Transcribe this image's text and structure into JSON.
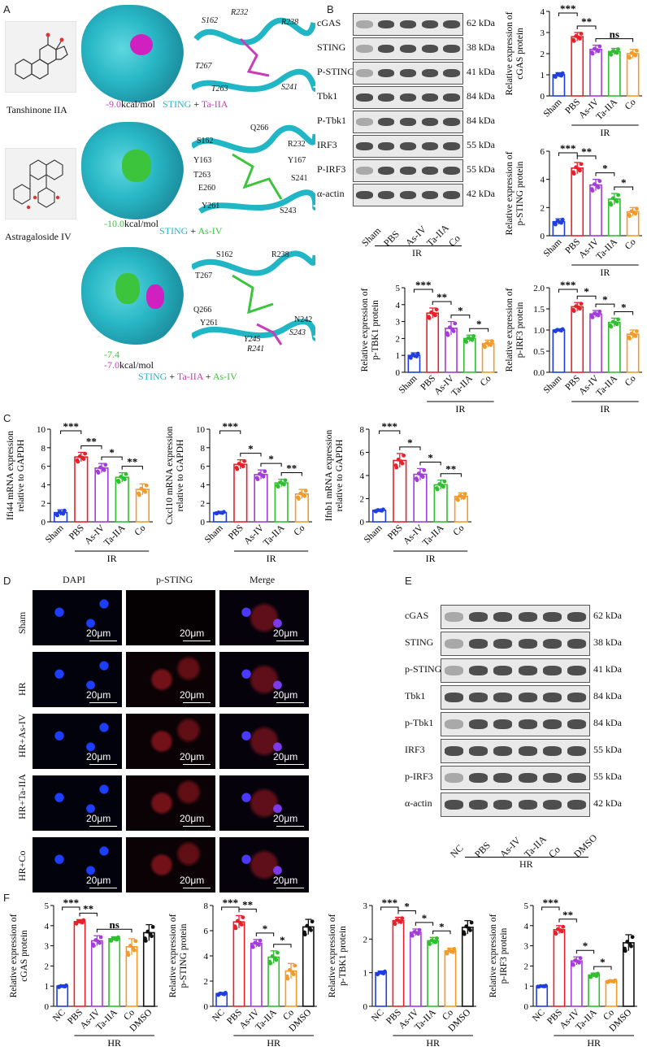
{
  "panel_labels": {
    "A": "A",
    "B": "B",
    "C": "C",
    "D": "D",
    "E": "E",
    "F": "F"
  },
  "docking": {
    "compound1": "Tanshinone IIA",
    "compound2": "Astragaloside IV",
    "energy1": "-9.0",
    "energy2": "-10.0",
    "energy3a": "-7.4",
    "energy3b": "-7.0",
    "unit": "kcal/mol",
    "cap1": {
      "a": "STING",
      "plus": " + ",
      "b": "Ta-IIA"
    },
    "cap2": {
      "a": "STING",
      "plus": " + ",
      "b": "As-IV"
    },
    "cap3": {
      "a": "STING",
      "p1": " + ",
      "b": "Ta-IIA",
      "p2": " + ",
      "c": "As-IV"
    },
    "residues1": [
      "S162",
      "R232",
      "R238",
      "T267",
      "T263",
      "S241"
    ],
    "residues2": [
      "S162",
      "Q266",
      "R232",
      "Y163",
      "Y167",
      "T263",
      "S241",
      "E260",
      "Y261",
      "S243"
    ],
    "residues3": [
      "S162",
      "R238",
      "T267",
      "Q266",
      "Y261",
      "N242",
      "S243",
      "Y245",
      "R241"
    ],
    "colors": {
      "sting": "#21b6c5",
      "ta": "#c63fb4",
      "as": "#3cc43c"
    }
  },
  "blotB": {
    "labels": [
      "cGAS",
      "STING",
      "P-STING",
      "Tbk1",
      "P-Tbk1",
      "IRF3",
      "P-IRF3",
      "α-actin"
    ],
    "mw": [
      "62 kDa",
      "38 kDa",
      "41 kDa",
      "84 kDa",
      "84 kDa",
      "55 kDa",
      "55 kDa",
      "42 kDa"
    ],
    "lanes": [
      "Sham",
      "PBS",
      "As-IV",
      "Ta-IIA",
      "Co"
    ],
    "group": "IR"
  },
  "blotE": {
    "labels": [
      "cGAS",
      "STING",
      "p-STING",
      "Tbk1",
      "p-Tbk1",
      "IRF3",
      "p-IRF3",
      "α-actin"
    ],
    "mw": [
      "62 kDa",
      "38 kDa",
      "41 kDa",
      "84 kDa",
      "84 kDa",
      "55 kDa",
      "55 kDa",
      "42 kDa"
    ],
    "lanes": [
      "NC",
      "PBS",
      "As-IV",
      "Ta-IIA",
      "Co",
      "DMSO"
    ],
    "group": "HR"
  },
  "microscopy": {
    "columns": [
      "DAPI",
      "p-STING",
      "Merge"
    ],
    "rows": [
      "Sham",
      "HR",
      "HR+As-IV",
      "HR+Ta-IIA",
      "HR+Co"
    ],
    "scale": "20μm"
  },
  "colors": {
    "blue": "#1f3ee0",
    "red": "#e8202a",
    "purple": "#a43cdc",
    "green": "#2fbf2f",
    "orange": "#f39a2a",
    "black": "#111111"
  },
  "chart_data": [
    {
      "id": "b_cgas",
      "type": "bar",
      "ylabel": "Relative expression of\ncGAS protein",
      "categories": [
        "Sham",
        "PBS",
        "As-IV",
        "Ta-IIA",
        "Co"
      ],
      "values": [
        1.0,
        2.8,
        2.2,
        2.1,
        2.0
      ],
      "errors": [
        0.1,
        0.2,
        0.2,
        0.15,
        0.2
      ],
      "ylim": [
        0,
        4
      ],
      "yticks": [
        0,
        1,
        2,
        3,
        4
      ],
      "group_label": "IR",
      "sig": [
        {
          "from": 0,
          "to": 1,
          "label": "***"
        },
        {
          "from": 1,
          "to": 2,
          "label": "**"
        },
        {
          "from": 2,
          "to": 4,
          "label": "ns"
        }
      ]
    },
    {
      "id": "b_psting",
      "type": "bar",
      "ylabel": "Relative expression of\np-STING protein",
      "categories": [
        "Sham",
        "PBS",
        "As-IV",
        "Ta-IIA",
        "Co"
      ],
      "values": [
        1.0,
        4.8,
        3.6,
        2.6,
        1.7
      ],
      "errors": [
        0.2,
        0.4,
        0.4,
        0.4,
        0.3
      ],
      "ylim": [
        0,
        6
      ],
      "yticks": [
        0,
        2,
        4,
        6
      ],
      "group_label": "IR",
      "sig": [
        {
          "from": 0,
          "to": 1,
          "label": "***"
        },
        {
          "from": 1,
          "to": 2,
          "label": "**"
        },
        {
          "from": 2,
          "to": 3,
          "label": "*"
        },
        {
          "from": 3,
          "to": 4,
          "label": "*"
        }
      ]
    },
    {
      "id": "b_ptbk1",
      "type": "bar",
      "ylabel": "Relative expression of\np-TBK1 protein",
      "categories": [
        "Sham",
        "PBS",
        "As-IV",
        "Ta-IIA",
        "Co"
      ],
      "values": [
        1.0,
        3.5,
        2.6,
        2.0,
        1.7
      ],
      "errors": [
        0.15,
        0.3,
        0.4,
        0.2,
        0.2
      ],
      "ylim": [
        0,
        5
      ],
      "yticks": [
        0,
        1,
        2,
        3,
        4,
        5
      ],
      "group_label": "IR",
      "sig": [
        {
          "from": 0,
          "to": 1,
          "label": "***"
        },
        {
          "from": 1,
          "to": 2,
          "label": "**"
        },
        {
          "from": 2,
          "to": 3,
          "label": "*"
        },
        {
          "from": 3,
          "to": 4,
          "label": "*"
        }
      ]
    },
    {
      "id": "b_pirf3",
      "type": "bar",
      "ylabel": "Relative expression of\np-IRF3 protein",
      "categories": [
        "Sham",
        "PBS",
        "As-IV",
        "Ta-IIA",
        "Co"
      ],
      "values": [
        1.0,
        1.55,
        1.38,
        1.18,
        0.9
      ],
      "errors": [
        0.03,
        0.1,
        0.08,
        0.1,
        0.1
      ],
      "ylim": [
        0,
        2.0
      ],
      "yticks": [
        0.0,
        0.5,
        1.0,
        1.5,
        2.0
      ],
      "decimals": 1,
      "group_label": "IR",
      "sig": [
        {
          "from": 0,
          "to": 1,
          "label": "***"
        },
        {
          "from": 1,
          "to": 2,
          "label": "*"
        },
        {
          "from": 2,
          "to": 3,
          "label": "*"
        },
        {
          "from": 3,
          "to": 4,
          "label": "*"
        }
      ]
    },
    {
      "id": "c_ifi44",
      "type": "bar",
      "ylabel": "Ifi44 mRNA expression\nrelative to GAPDH",
      "categories": [
        "Sham",
        "PBS",
        "As-IV",
        "Ta-IIA",
        "Co"
      ],
      "values": [
        1.0,
        7.0,
        5.8,
        4.8,
        3.5
      ],
      "errors": [
        0.3,
        0.5,
        0.5,
        0.5,
        0.6
      ],
      "ylim": [
        0,
        10
      ],
      "yticks": [
        0,
        2,
        4,
        6,
        8,
        10
      ],
      "group_label": "IR",
      "sig": [
        {
          "from": 0,
          "to": 1,
          "label": "***"
        },
        {
          "from": 1,
          "to": 2,
          "label": "**"
        },
        {
          "from": 2,
          "to": 3,
          "label": "*"
        },
        {
          "from": 3,
          "to": 4,
          "label": "**"
        }
      ]
    },
    {
      "id": "c_cxcl10",
      "type": "bar",
      "ylabel": "Cxcl10 mRNA expression\nrelative to GAPDH",
      "categories": [
        "Sham",
        "PBS",
        "As-IV",
        "Ta-IIA",
        "Co"
      ],
      "values": [
        1.0,
        6.2,
        5.1,
        4.2,
        3.0
      ],
      "errors": [
        0.1,
        0.5,
        0.5,
        0.4,
        0.5
      ],
      "ylim": [
        0,
        10
      ],
      "yticks": [
        0,
        2,
        4,
        6,
        8,
        10
      ],
      "group_label": "IR",
      "sig": [
        {
          "from": 0,
          "to": 1,
          "label": "***"
        },
        {
          "from": 1,
          "to": 2,
          "label": "*"
        },
        {
          "from": 2,
          "to": 3,
          "label": "*"
        },
        {
          "from": 3,
          "to": 4,
          "label": "**"
        }
      ]
    },
    {
      "id": "c_ifnb1",
      "type": "bar",
      "ylabel": "Ifnb1 mRNA expression\nrelative to GAPDH",
      "categories": [
        "Sham",
        "PBS",
        "As-IV",
        "Ta-IIA",
        "Co"
      ],
      "values": [
        1.0,
        5.3,
        4.1,
        3.2,
        2.2
      ],
      "errors": [
        0.1,
        0.6,
        0.5,
        0.4,
        0.3
      ],
      "ylim": [
        0,
        8
      ],
      "yticks": [
        0,
        2,
        4,
        6,
        8
      ],
      "group_label": "IR",
      "sig": [
        {
          "from": 0,
          "to": 1,
          "label": "***"
        },
        {
          "from": 1,
          "to": 2,
          "label": "*"
        },
        {
          "from": 2,
          "to": 3,
          "label": "*"
        },
        {
          "from": 3,
          "to": 4,
          "label": "**"
        }
      ]
    },
    {
      "id": "f_cgas",
      "type": "bar",
      "ylabel": "Relative expression of\ncGAS protein",
      "categories": [
        "NC",
        "PBS",
        "As-IV",
        "Ta-IIA",
        "Co",
        "DMSO"
      ],
      "values": [
        1.0,
        4.2,
        3.25,
        3.35,
        2.95,
        3.65
      ],
      "errors": [
        0.05,
        0.1,
        0.25,
        0.1,
        0.4,
        0.4
      ],
      "ylim": [
        0,
        5
      ],
      "yticks": [
        0,
        1,
        2,
        3,
        4,
        5
      ],
      "group_label": "HR",
      "sig": [
        {
          "from": 0,
          "to": 1,
          "label": "***"
        },
        {
          "from": 1,
          "to": 2,
          "label": "**"
        },
        {
          "from": 2,
          "to": 4,
          "label": "ns"
        }
      ]
    },
    {
      "id": "f_psting",
      "type": "bar",
      "ylabel": "Relative expression of\np-STING protein",
      "categories": [
        "NC",
        "PBS",
        "As-IV",
        "Ta-IIA",
        "Co",
        "DMSO"
      ],
      "values": [
        1.0,
        6.7,
        5.0,
        3.9,
        2.8,
        6.3
      ],
      "errors": [
        0.1,
        0.5,
        0.3,
        0.5,
        0.6,
        0.6
      ],
      "ylim": [
        0,
        8
      ],
      "yticks": [
        0,
        2,
        4,
        6,
        8
      ],
      "group_label": "HR",
      "sig": [
        {
          "from": 0,
          "to": 1,
          "label": "***"
        },
        {
          "from": 1,
          "to": 2,
          "label": "**"
        },
        {
          "from": 2,
          "to": 3,
          "label": "*"
        },
        {
          "from": 3,
          "to": 4,
          "label": "*"
        }
      ]
    },
    {
      "id": "f_ptbk1",
      "type": "bar",
      "ylabel": "Relative expression of\np-TBK1 protein",
      "categories": [
        "NC",
        "PBS",
        "As-IV",
        "Ta-IIA",
        "Co",
        "DMSO"
      ],
      "values": [
        1.0,
        2.55,
        2.2,
        1.95,
        1.65,
        2.35
      ],
      "errors": [
        0.05,
        0.1,
        0.1,
        0.1,
        0.08,
        0.2
      ],
      "ylim": [
        0,
        3
      ],
      "yticks": [
        0,
        1,
        2,
        3
      ],
      "group_label": "HR",
      "sig": [
        {
          "from": 0,
          "to": 1,
          "label": "***"
        },
        {
          "from": 1,
          "to": 2,
          "label": "*"
        },
        {
          "from": 2,
          "to": 3,
          "label": "*"
        },
        {
          "from": 3,
          "to": 4,
          "label": "*"
        }
      ]
    },
    {
      "id": "f_pirf3",
      "type": "bar",
      "ylabel": "Relative expression of\np-IRF3 protein",
      "categories": [
        "NC",
        "PBS",
        "As-IV",
        "Ta-IIA",
        "Co",
        "DMSO"
      ],
      "values": [
        1.0,
        3.8,
        2.25,
        1.55,
        1.25,
        3.15
      ],
      "errors": [
        0.03,
        0.2,
        0.2,
        0.1,
        0.05,
        0.4
      ],
      "ylim": [
        0,
        5
      ],
      "yticks": [
        0,
        1,
        2,
        3,
        4,
        5
      ],
      "group_label": "HR",
      "sig": [
        {
          "from": 0,
          "to": 1,
          "label": "***"
        },
        {
          "from": 1,
          "to": 2,
          "label": "**"
        },
        {
          "from": 2,
          "to": 3,
          "label": "*"
        },
        {
          "from": 3,
          "to": 4,
          "label": "*"
        }
      ]
    }
  ]
}
